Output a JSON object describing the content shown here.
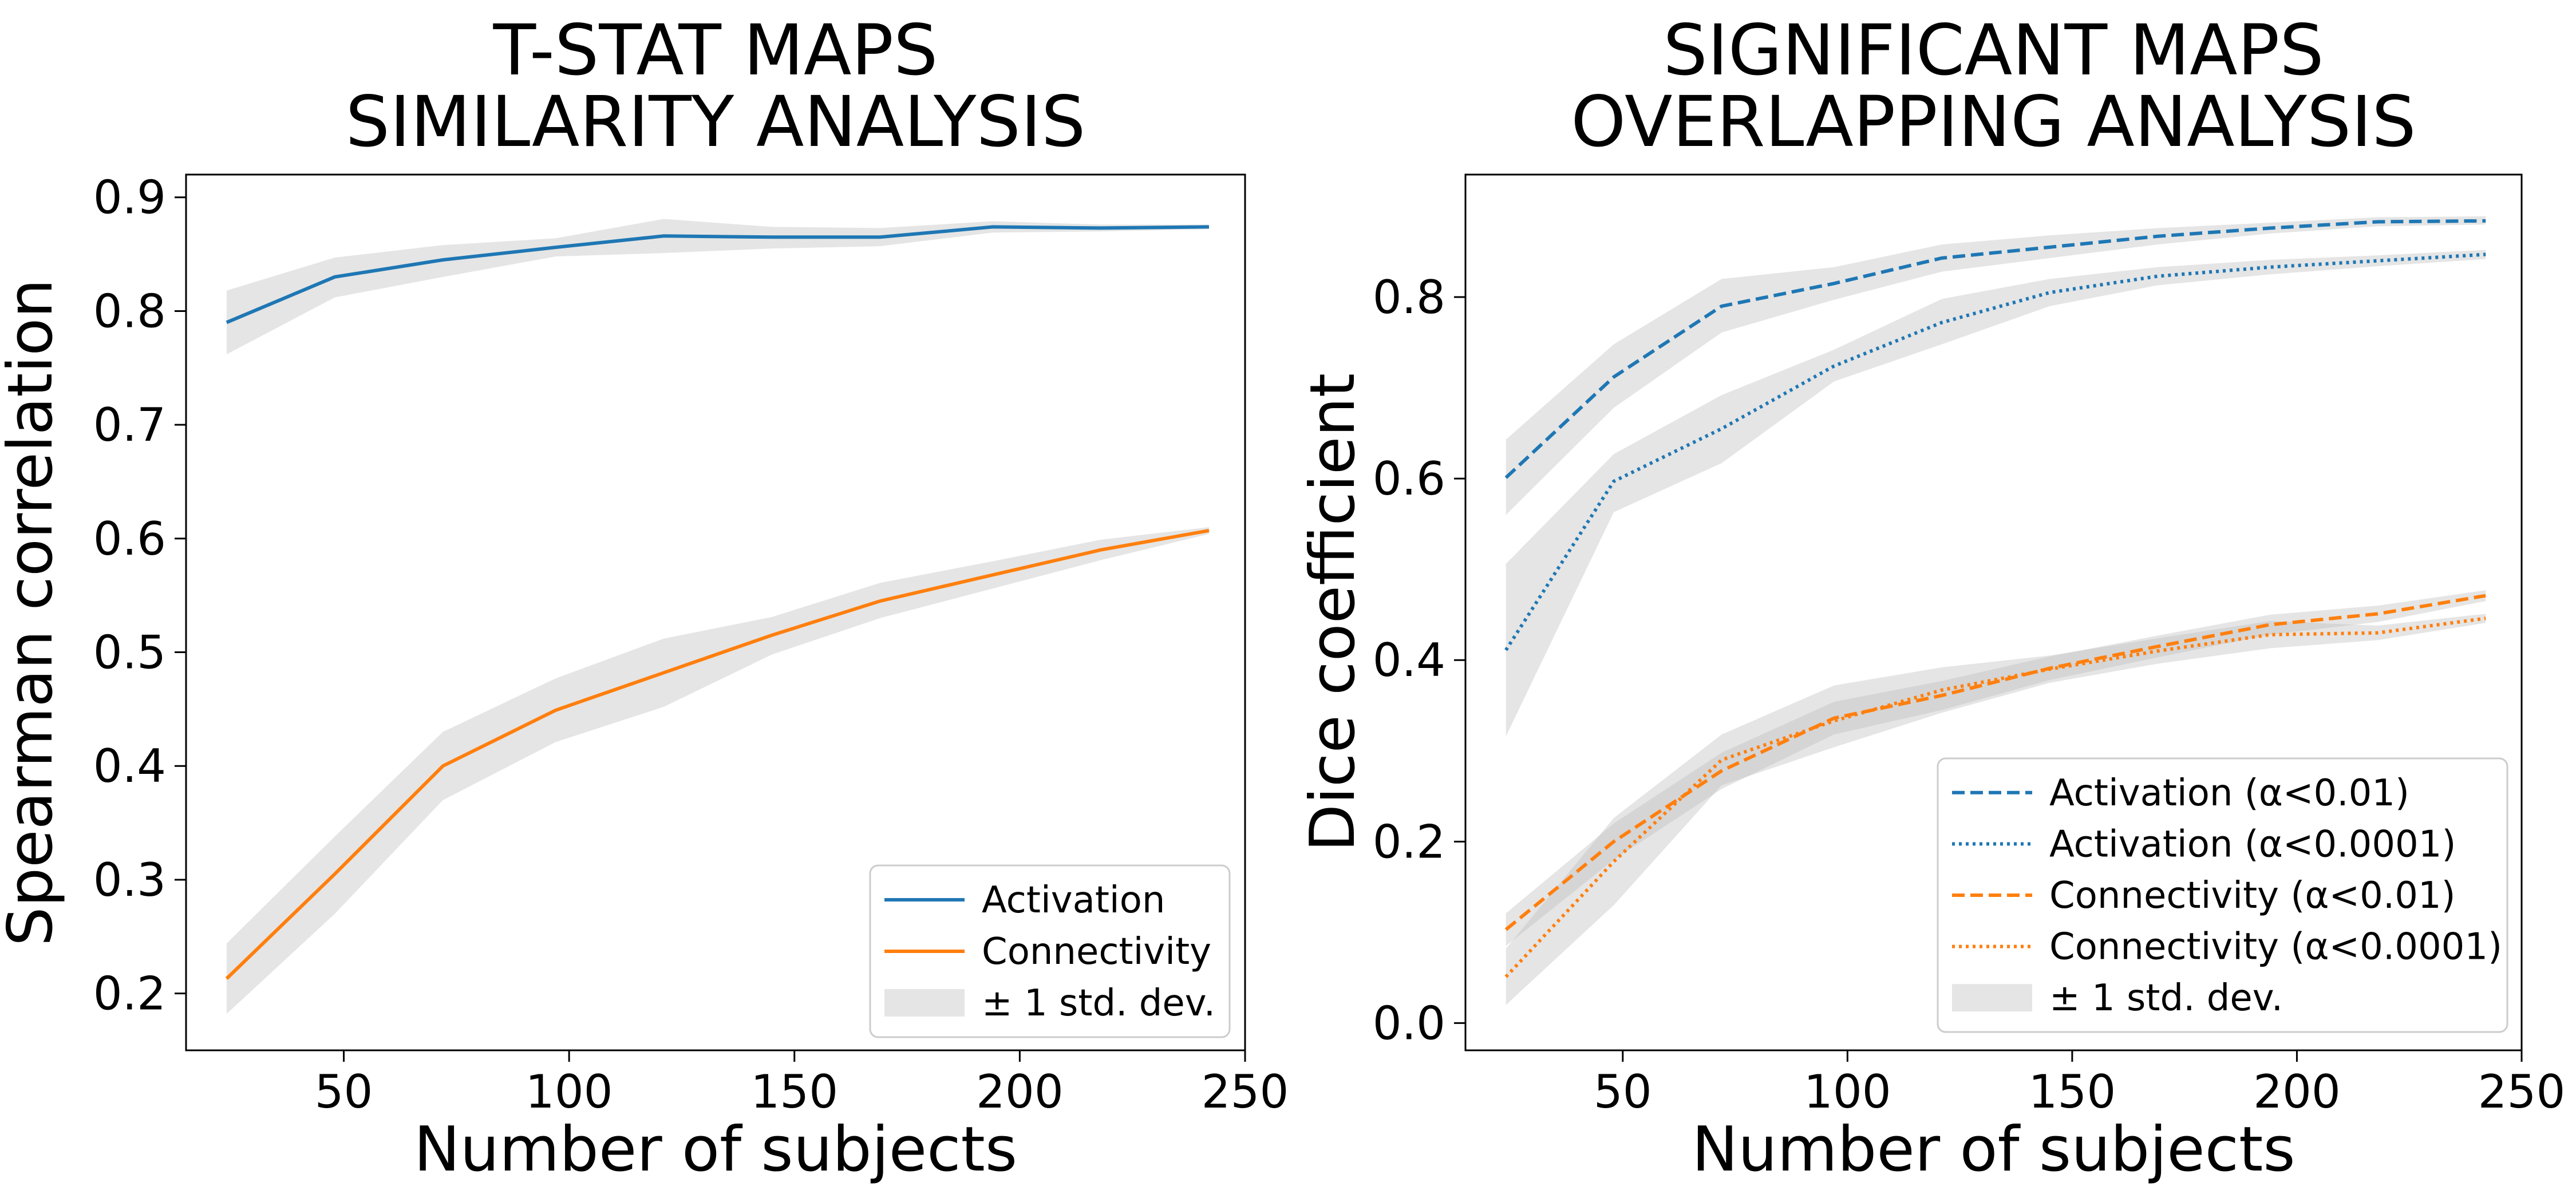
{
  "chart_data": [
    {
      "type": "line",
      "title": [
        "T-STAT MAPS",
        "SIMILARITY ANALYSIS"
      ],
      "xlabel": "Number of subjects",
      "ylabel": "Spearman correlation",
      "xlim": [
        15,
        250
      ],
      "ylim": [
        0.15,
        0.92
      ],
      "xticks": [
        50,
        100,
        150,
        200,
        250
      ],
      "yticks": [
        0.2,
        0.3,
        0.4,
        0.5,
        0.6,
        0.7,
        0.8,
        0.9
      ],
      "grid": false,
      "legend_position": "lower-right",
      "x": [
        24,
        48,
        72,
        97,
        121,
        145,
        169,
        194,
        218,
        242
      ],
      "series": [
        {
          "name": "Activation",
          "color": "#1f77b4",
          "dash": "solid",
          "values": [
            0.79,
            0.83,
            0.845,
            0.856,
            0.866,
            0.865,
            0.865,
            0.874,
            0.873,
            0.874
          ],
          "lower": [
            0.762,
            0.812,
            0.83,
            0.848,
            0.851,
            0.855,
            0.857,
            0.869,
            0.87,
            0.872
          ],
          "upper": [
            0.818,
            0.847,
            0.858,
            0.864,
            0.881,
            0.874,
            0.873,
            0.879,
            0.876,
            0.876
          ]
        },
        {
          "name": "Connectivity",
          "color": "#ff7f0e",
          "dash": "solid",
          "values": [
            0.213,
            0.305,
            0.4,
            0.449,
            0.482,
            0.515,
            0.545,
            0.568,
            0.59,
            0.607
          ],
          "lower": [
            0.182,
            0.27,
            0.37,
            0.421,
            0.452,
            0.498,
            0.53,
            0.556,
            0.581,
            0.604
          ],
          "upper": [
            0.244,
            0.338,
            0.43,
            0.477,
            0.512,
            0.531,
            0.561,
            0.58,
            0.599,
            0.61
          ]
        }
      ],
      "band_label": "± 1 std. dev.",
      "band_color": "#bfbfbf"
    },
    {
      "type": "line",
      "title": [
        "SIGNIFICANT MAPS",
        "OVERLAPPING ANALYSIS"
      ],
      "xlabel": "Number of subjects",
      "ylabel": "Dice coefficient",
      "xlim": [
        15,
        250
      ],
      "ylim": [
        -0.03,
        0.935
      ],
      "xticks": [
        50,
        100,
        150,
        200,
        250
      ],
      "yticks": [
        0.0,
        0.2,
        0.4,
        0.6,
        0.8
      ],
      "grid": false,
      "legend_position": "lower-right",
      "x": [
        24,
        48,
        72,
        97,
        121,
        145,
        169,
        194,
        218,
        242
      ],
      "series": [
        {
          "name": "Activation (α<0.01)",
          "color": "#1f77b4",
          "dash": "dashed",
          "values": [
            0.601,
            0.712,
            0.79,
            0.815,
            0.843,
            0.855,
            0.867,
            0.876,
            0.883,
            0.884
          ],
          "lower": [
            0.56,
            0.678,
            0.761,
            0.797,
            0.828,
            0.843,
            0.858,
            0.87,
            0.878,
            0.88
          ],
          "upper": [
            0.643,
            0.748,
            0.82,
            0.833,
            0.858,
            0.868,
            0.876,
            0.882,
            0.888,
            0.889
          ]
        },
        {
          "name": "Activation (α<0.0001)",
          "color": "#1f77b4",
          "dash": "dotted",
          "values": [
            0.411,
            0.597,
            0.655,
            0.724,
            0.772,
            0.805,
            0.823,
            0.833,
            0.84,
            0.847
          ],
          "lower": [
            0.316,
            0.563,
            0.617,
            0.707,
            0.748,
            0.79,
            0.813,
            0.825,
            0.834,
            0.842
          ],
          "upper": [
            0.506,
            0.627,
            0.692,
            0.742,
            0.798,
            0.82,
            0.833,
            0.841,
            0.846,
            0.852
          ]
        },
        {
          "name": "Connectivity (α<0.01)",
          "color": "#ff7f0e",
          "dash": "dashed",
          "values": [
            0.103,
            0.2,
            0.278,
            0.336,
            0.361,
            0.391,
            0.415,
            0.439,
            0.451,
            0.471
          ],
          "lower": [
            0.085,
            0.18,
            0.258,
            0.318,
            0.345,
            0.378,
            0.403,
            0.428,
            0.442,
            0.465
          ],
          "upper": [
            0.121,
            0.22,
            0.298,
            0.354,
            0.377,
            0.404,
            0.427,
            0.45,
            0.46,
            0.477
          ]
        },
        {
          "name": "Connectivity (α<0.0001)",
          "color": "#ff7f0e",
          "dash": "dotted",
          "values": [
            0.051,
            0.178,
            0.29,
            0.333,
            0.367,
            0.39,
            0.41,
            0.428,
            0.43,
            0.446
          ],
          "lower": [
            0.02,
            0.13,
            0.262,
            0.304,
            0.342,
            0.375,
            0.396,
            0.413,
            0.422,
            0.441
          ],
          "upper": [
            0.082,
            0.226,
            0.318,
            0.372,
            0.392,
            0.405,
            0.424,
            0.443,
            0.438,
            0.451
          ]
        }
      ],
      "band_label": "± 1 std. dev.",
      "band_color": "#bfbfbf"
    }
  ]
}
